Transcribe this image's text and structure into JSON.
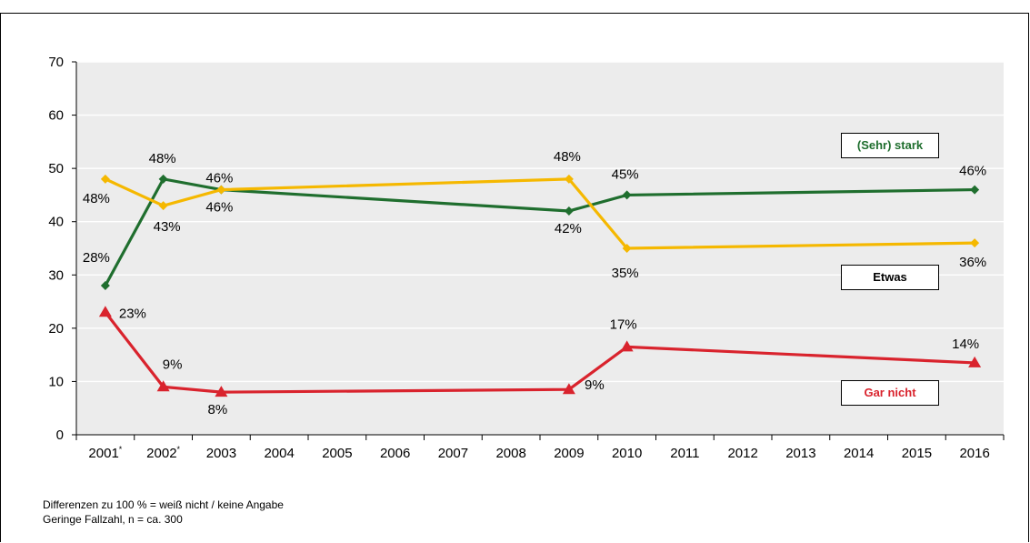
{
  "chart_data": {
    "type": "line",
    "ylim": [
      0,
      70
    ],
    "yticks": [
      0,
      10,
      20,
      30,
      40,
      50,
      60,
      70
    ],
    "categories": [
      "2001",
      "2002",
      "2003",
      "2004",
      "2005",
      "2006",
      "2007",
      "2008",
      "2009",
      "2010",
      "2011",
      "2012",
      "2013",
      "2014",
      "2015",
      "2016"
    ],
    "category_markers": [
      "*",
      "*",
      "",
      "",
      "",
      "",
      "",
      "",
      "",
      "",
      "",
      "",
      "",
      "",
      "",
      ""
    ],
    "grid": true,
    "series": [
      {
        "name": "(Sehr) stark",
        "color": "#1f6e2e",
        "marker": "diamond",
        "points": [
          {
            "x": "2001",
            "y": 28,
            "label": "28%"
          },
          {
            "x": "2002",
            "y": 48,
            "label": "48%"
          },
          {
            "x": "2003",
            "y": 46,
            "label": "46%"
          },
          {
            "x": "2009",
            "y": 42,
            "label": "42%"
          },
          {
            "x": "2010",
            "y": 45,
            "label": "45%"
          },
          {
            "x": "2016",
            "y": 46,
            "label": "46%"
          }
        ]
      },
      {
        "name": "Etwas",
        "color": "#f5b800",
        "marker": "diamond",
        "points": [
          {
            "x": "2001",
            "y": 48,
            "label": "48%"
          },
          {
            "x": "2002",
            "y": 43,
            "label": "43%"
          },
          {
            "x": "2003",
            "y": 46,
            "label": "46%"
          },
          {
            "x": "2009",
            "y": 48,
            "label": "48%"
          },
          {
            "x": "2010",
            "y": 35,
            "label": "35%"
          },
          {
            "x": "2016",
            "y": 36,
            "label": "36%"
          }
        ]
      },
      {
        "name": "Gar nicht",
        "color": "#d9232d",
        "marker": "triangle",
        "points": [
          {
            "x": "2001",
            "y": 23,
            "label": "23%"
          },
          {
            "x": "2002",
            "y": 9,
            "label": "9%"
          },
          {
            "x": "2003",
            "y": 8,
            "label": "8%"
          },
          {
            "x": "2009",
            "y": 8.5,
            "label": "9%"
          },
          {
            "x": "2010",
            "y": 16.5,
            "label": "17%"
          },
          {
            "x": "2016",
            "y": 13.5,
            "label": "14%"
          }
        ]
      }
    ],
    "notes": [
      "Differenzen zu 100 % = weiß nicht / keine Angabe",
      "Geringe Fallzahl, n = ca. 300"
    ]
  }
}
